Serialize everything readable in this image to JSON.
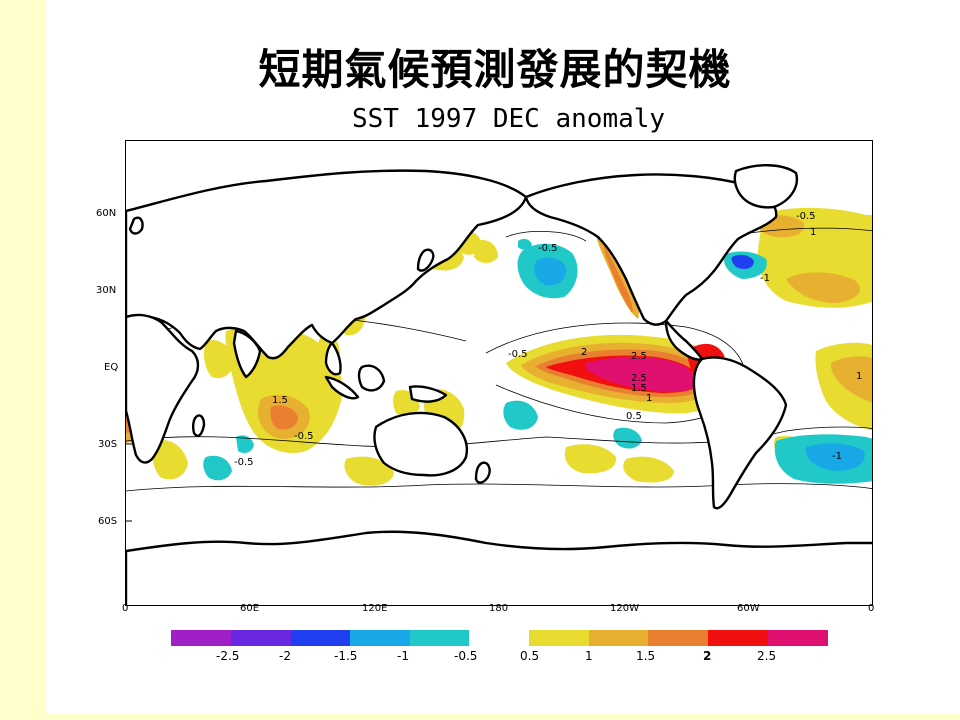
{
  "slide": {
    "title": "短期氣候預測發展的契機"
  },
  "map": {
    "title": "SST 1997 DEC anomaly",
    "lat_labels": [
      "60N",
      "30N",
      "EQ",
      "30S",
      "60S"
    ],
    "lon_labels": [
      "0",
      "60E",
      "120E",
      "180",
      "120W",
      "60W",
      "0"
    ],
    "contour_labels": [
      "-0.5",
      "0.5",
      "1",
      "1.5",
      "2",
      "2.5",
      "-1"
    ]
  },
  "colorbar": {
    "negative_colors": [
      "#a020c8",
      "#6a28e0",
      "#2040f0",
      "#18a8e8",
      "#20c8c8"
    ],
    "positive_colors": [
      "#e8dc30",
      "#e8b030",
      "#e88030",
      "#f01010",
      "#e01070"
    ],
    "labels": [
      "-2.5",
      "-2",
      "-1.5",
      "-1",
      "-0.5",
      "0.5",
      "1",
      "1.5",
      "2",
      "2.5"
    ]
  }
}
